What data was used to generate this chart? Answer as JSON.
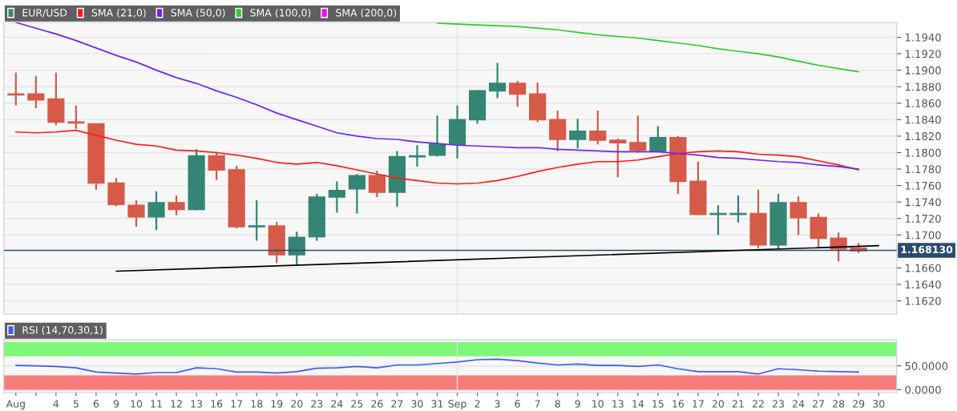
{
  "chart_data": [
    {
      "type": "candlestick",
      "categories": [
        "Aug",
        null,
        "4",
        "5",
        "6",
        "9",
        "10",
        "11",
        "12",
        "13",
        "16",
        "17",
        "18",
        "19",
        "20",
        "23",
        "24",
        "25",
        "26",
        "27",
        "30",
        "31",
        "Sep",
        "2",
        "3",
        "6",
        "7",
        "8",
        "9",
        "10",
        "13",
        "14",
        "15",
        "16",
        "17",
        "20",
        "21",
        "22",
        "23",
        "24",
        "27",
        "28",
        "29",
        "30"
      ],
      "series": [
        {
          "name": "EUR/USD",
          "type": "candlestick",
          "color": "#348573",
          "ohlc": [
            [
              1.1871,
              1.1897,
              1.1857,
              1.187
            ],
            [
              1.1871,
              1.1893,
              1.1854,
              1.1864
            ],
            [
              1.1865,
              1.1897,
              1.1833,
              1.1837
            ],
            [
              1.1837,
              1.1857,
              1.1829,
              1.1836
            ],
            [
              1.1835,
              1.1835,
              1.1755,
              1.1763
            ],
            [
              1.1763,
              1.1769,
              1.1735,
              1.1737
            ],
            [
              1.1736,
              1.1742,
              1.171,
              1.1722
            ],
            [
              1.1722,
              1.1753,
              1.1706,
              1.1739
            ],
            [
              1.1739,
              1.1748,
              1.1724,
              1.1731
            ],
            [
              1.1731,
              1.1804,
              1.173,
              1.1796
            ],
            [
              1.1796,
              1.1801,
              1.1767,
              1.1779
            ],
            [
              1.1779,
              1.1784,
              1.1708,
              1.171
            ],
            [
              1.171,
              1.1742,
              1.1693,
              1.1711
            ],
            [
              1.1711,
              1.1716,
              1.1666,
              1.1676
            ],
            [
              1.1676,
              1.1704,
              1.1663,
              1.1697
            ],
            [
              1.1698,
              1.175,
              1.1693,
              1.1746
            ],
            [
              1.1746,
              1.1765,
              1.1727,
              1.1754
            ],
            [
              1.1756,
              1.1774,
              1.1726,
              1.1772
            ],
            [
              1.1772,
              1.1778,
              1.1746,
              1.1752
            ],
            [
              1.1752,
              1.1802,
              1.1734,
              1.1795
            ],
            [
              1.1795,
              1.1809,
              1.1783,
              1.1796
            ],
            [
              1.1797,
              1.1845,
              1.1795,
              1.181
            ],
            [
              1.181,
              1.1857,
              1.1793,
              1.184
            ],
            [
              1.184,
              1.1876,
              1.1835,
              1.1875
            ],
            [
              1.1875,
              1.1909,
              1.1866,
              1.1884
            ],
            [
              1.1884,
              1.1887,
              1.1856,
              1.1871
            ],
            [
              1.1871,
              1.1885,
              1.1837,
              1.184
            ],
            [
              1.184,
              1.1851,
              1.1802,
              1.1816
            ],
            [
              1.1816,
              1.1841,
              1.1805,
              1.1826
            ],
            [
              1.1826,
              1.1851,
              1.181,
              1.1815
            ],
            [
              1.1815,
              1.1817,
              1.177,
              1.1812
            ],
            [
              1.1812,
              1.1845,
              1.18,
              1.1803
            ],
            [
              1.1802,
              1.1832,
              1.18,
              1.1818
            ],
            [
              1.1818,
              1.182,
              1.175,
              1.1765
            ],
            [
              1.1765,
              1.1789,
              1.1724,
              1.1725
            ],
            [
              1.1725,
              1.1736,
              1.17,
              1.1726
            ],
            [
              1.1725,
              1.1748,
              1.1715,
              1.1726
            ],
            [
              1.1726,
              1.1755,
              1.1684,
              1.1688
            ],
            [
              1.1688,
              1.175,
              1.1683,
              1.1739
            ],
            [
              1.1739,
              1.1747,
              1.17,
              1.1721
            ],
            [
              1.1721,
              1.1726,
              1.1685,
              1.1696
            ],
            [
              1.1696,
              1.1703,
              1.1668,
              1.1683
            ],
            [
              1.1684,
              1.169,
              1.1678,
              1.1681
            ],
            null
          ],
          "colors": [
            "#d55a48",
            "#d55a48",
            "#d55a48",
            "#d55a48",
            "#d55a48",
            "#d55a48",
            "#d55a48",
            "#348573",
            "#d55a48",
            "#348573",
            "#d55a48",
            "#d55a48",
            "#348573",
            "#d55a48",
            "#348573",
            "#348573",
            "#348573",
            "#348573",
            "#d55a48",
            "#348573",
            "#348573",
            "#348573",
            "#348573",
            "#348573",
            "#348573",
            "#d55a48",
            "#d55a48",
            "#d55a48",
            "#348573",
            "#d55a48",
            "#d55a48",
            "#d55a48",
            "#348573",
            "#d55a48",
            "#d55a48",
            "#348573",
            "#348573",
            "#d55a48",
            "#348573",
            "#d55a48",
            "#d55a48",
            "#d55a48",
            "#d55a48",
            null
          ]
        },
        {
          "name": "SMA (21,0)",
          "type": "line",
          "color": "#ff1a1a",
          "values": [
            1.1825,
            1.1824,
            1.1825,
            1.1827,
            1.1821,
            1.1815,
            1.181,
            1.1808,
            1.1803,
            1.1802,
            1.18,
            1.1797,
            1.1793,
            1.1788,
            1.1786,
            1.1788,
            1.1784,
            1.1779,
            1.1774,
            1.1769,
            1.1766,
            1.1763,
            1.1762,
            1.1763,
            1.1766,
            1.1771,
            1.1777,
            1.1782,
            1.1786,
            1.1789,
            1.1789,
            1.1791,
            1.1795,
            1.1799,
            1.1801,
            1.1802,
            1.1801,
            1.1798,
            1.1797,
            1.1795,
            1.179,
            1.1785,
            1.1779,
            null
          ]
        },
        {
          "name": "SMA (50,0)",
          "type": "line",
          "color": "#6f22f0",
          "values": [
            1.1958,
            1.1951,
            1.1944,
            1.1936,
            1.1927,
            1.1918,
            1.191,
            1.19,
            1.1891,
            1.1884,
            1.1875,
            1.1867,
            1.1858,
            1.1848,
            1.184,
            1.1832,
            1.1824,
            1.182,
            1.1817,
            1.1816,
            1.1813,
            1.1811,
            1.1809,
            1.1808,
            1.1807,
            1.1806,
            1.1806,
            1.1804,
            1.1803,
            1.1802,
            1.1801,
            1.1801,
            1.1801,
            1.1799,
            1.1797,
            1.1794,
            1.1793,
            1.1791,
            1.1789,
            1.1788,
            1.1785,
            1.1783,
            1.178,
            null
          ]
        },
        {
          "name": "SMA (100,0)",
          "type": "line",
          "color": "#2ecc2e",
          "values": [
            null,
            null,
            null,
            null,
            null,
            null,
            null,
            null,
            null,
            null,
            null,
            null,
            null,
            null,
            null,
            null,
            null,
            null,
            null,
            null,
            null,
            1.1957,
            1.1956,
            1.1955,
            1.1954,
            1.1953,
            1.1951,
            1.1949,
            1.1946,
            1.1943,
            1.1941,
            1.1939,
            1.1936,
            1.1933,
            1.193,
            1.1926,
            1.1923,
            1.192,
            1.1916,
            1.1911,
            1.1906,
            1.1902,
            1.1898,
            null
          ]
        },
        {
          "name": "SMA (200,0)",
          "type": "line",
          "color": "#ff00ff",
          "values": [
            null,
            null,
            null,
            null,
            null,
            null,
            null,
            null,
            null,
            null,
            null,
            null,
            null,
            null,
            null,
            null,
            null,
            null,
            null,
            null,
            null,
            null,
            null,
            null,
            null,
            null,
            null,
            null,
            null,
            null,
            null,
            null,
            null,
            null,
            null,
            null,
            null,
            null,
            null,
            null,
            null,
            null,
            null,
            null
          ]
        },
        {
          "type": "line",
          "color": "#000000",
          "values": [
            null,
            null,
            null,
            null,
            null,
            1.1656,
            null,
            null,
            null,
            null,
            null,
            null,
            null,
            null,
            null,
            null,
            null,
            null,
            null,
            null,
            null,
            null,
            null,
            null,
            null,
            null,
            null,
            null,
            null,
            null,
            null,
            null,
            null,
            null,
            null,
            null,
            null,
            null,
            null,
            null,
            null,
            null,
            null,
            1.1687
          ]
        }
      ],
      "ylim": [
        1.1604,
        1.1958
      ],
      "yticks": [
        {
          "value": 1.162,
          "label": "1.1620"
        },
        {
          "value": 1.164,
          "label": "1.1640"
        },
        {
          "value": 1.166,
          "label": "1.1660"
        },
        {
          "value": 1.17,
          "label": "1.1700"
        },
        {
          "value": 1.172,
          "label": "1.1720"
        },
        {
          "value": 1.174,
          "label": "1.1740"
        },
        {
          "value": 1.176,
          "label": "1.1760"
        },
        {
          "value": 1.178,
          "label": "1.1780"
        },
        {
          "value": 1.18,
          "label": "1.1800"
        },
        {
          "value": 1.182,
          "label": "1.1820"
        },
        {
          "value": 1.184,
          "label": "1.1840"
        },
        {
          "value": 1.186,
          "label": "1.1860"
        },
        {
          "value": 1.188,
          "label": "1.1880"
        },
        {
          "value": 1.19,
          "label": "1.1900"
        },
        {
          "value": 1.192,
          "label": "1.1920"
        },
        {
          "value": 1.194,
          "label": "1.1940"
        }
      ],
      "ref_lines": [
        {
          "axis": "y",
          "value": 1.16813,
          "label": "1.168130",
          "color": "#2c4a70"
        },
        {
          "axis": "x",
          "value": "Sep",
          "color": "#e2e2e2"
        }
      ],
      "grid": "y",
      "legend": "top left",
      "tick_labels": "y"
    },
    {
      "type": "line",
      "categories": [
        "Aug",
        null,
        "4",
        "5",
        "6",
        "9",
        "10",
        "11",
        "12",
        "13",
        "16",
        "17",
        "18",
        "19",
        "20",
        "23",
        "24",
        "25",
        "26",
        "27",
        "30",
        "31",
        "Sep",
        "2",
        "3",
        "6",
        "7",
        "8",
        "9",
        "10",
        "13",
        "14",
        "15",
        "16",
        "17",
        "20",
        "21",
        "22",
        "23",
        "24",
        "27",
        "28",
        "29",
        "30"
      ],
      "series": [
        {
          "name": "RSI (14,70,30,1)",
          "color": "#3a5cf0",
          "values": [
            51,
            50,
            49,
            46,
            37,
            35,
            33,
            36,
            36,
            46,
            44,
            37,
            37,
            35,
            38,
            45,
            46,
            49,
            46,
            52,
            52,
            55,
            58,
            63,
            64,
            61,
            56,
            52,
            54,
            51,
            51,
            49,
            52,
            44,
            38,
            38,
            38,
            33,
            44,
            42,
            39,
            38,
            37,
            null
          ]
        }
      ],
      "ylim": [
        -6,
        105
      ],
      "yticks": [
        {
          "value": 0,
          "label": "0.0000"
        },
        {
          "value": 50,
          "label": "50.0000"
        }
      ],
      "bands": [
        {
          "axis": "y",
          "from": 70,
          "to": 100,
          "color": "#7ef77a"
        },
        {
          "axis": "y",
          "from": 0,
          "to": 30,
          "color": "#f87c7c"
        }
      ],
      "ref_lines": [
        {
          "axis": "x",
          "value": "Sep",
          "color": "#e2e2e2"
        }
      ],
      "grid": "y",
      "legend": "top left"
    }
  ]
}
